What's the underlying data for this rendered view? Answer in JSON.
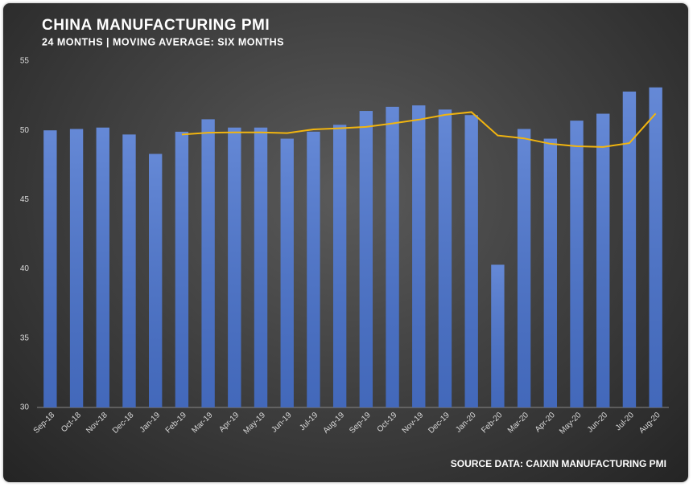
{
  "chart_data": {
    "type": "bar",
    "title": "CHINA MANUFACTURING PMI",
    "subtitle": "24 MONTHS | MOVING AVERAGE: SIX MONTHS",
    "source": "SOURCE DATA: CAIXIN MANUFACTURING PMI",
    "categories": [
      "Sep-18",
      "Oct-18",
      "Nov-18",
      "Dec-18",
      "Jan-19",
      "Feb-19",
      "Mar-19",
      "Apr-19",
      "May-19",
      "Jun-19",
      "Jul-19",
      "Aug-19",
      "Sep-19",
      "Oct-19",
      "Nov-19",
      "Dec-19",
      "Jan-20",
      "Feb-20",
      "Mar-20",
      "Apr-20",
      "May-20",
      "Jun-20",
      "Jul-20",
      "Aug-20"
    ],
    "series": [
      {
        "type": "bar",
        "color": "#4a74cf",
        "values": [
          50.0,
          50.1,
          50.2,
          49.7,
          48.3,
          49.9,
          50.8,
          50.2,
          50.2,
          49.4,
          49.9,
          50.4,
          51.4,
          51.7,
          51.8,
          51.5,
          51.1,
          40.3,
          50.1,
          49.4,
          50.7,
          51.2,
          52.8,
          53.1
        ]
      },
      {
        "type": "line",
        "color": "#f2b50f",
        "values": [
          null,
          null,
          null,
          null,
          null,
          49.7,
          49.83,
          49.85,
          49.85,
          49.8,
          50.07,
          50.15,
          50.25,
          50.5,
          50.77,
          51.12,
          51.32,
          49.63,
          49.42,
          49.03,
          48.85,
          48.8,
          49.08,
          51.22
        ]
      }
    ],
    "ylim": [
      30,
      55
    ],
    "yticks": [
      30,
      35,
      40,
      45,
      50,
      55
    ]
  }
}
